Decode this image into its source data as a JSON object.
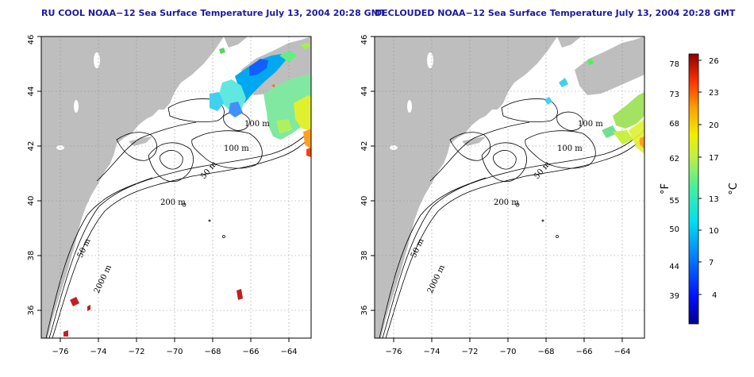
{
  "titles": {
    "left": "RU COOL NOAA−12 Sea Surface Temperature July 13, 2004 20:28 GMT",
    "right": "DECLOUDED NOAA−12 Sea Surface Temperature July 13, 2004 20:28 GMT"
  },
  "axes": {
    "lon_ticks": [
      "−76",
      "−74",
      "−72",
      "−70",
      "−68",
      "−66",
      "−64"
    ],
    "lon_values": [
      -76,
      -74,
      -72,
      -70,
      -68,
      -66,
      -64
    ],
    "lat_ticks": [
      "36",
      "38",
      "40",
      "42",
      "44",
      "46"
    ],
    "lat_values": [
      36,
      38,
      40,
      42,
      44,
      46
    ],
    "lon_range": [
      -77.2,
      -63.0
    ],
    "lat_range": [
      35.0,
      46.0
    ],
    "grid": "dotted"
  },
  "contour_labels": [
    "100 m",
    "100 m",
    "50 m",
    "200 m",
    "50 m",
    "2000 m"
  ],
  "colorbar": {
    "fahrenheit_ticks": [
      "78",
      "73",
      "68",
      "62",
      "55",
      "50",
      "44",
      "39"
    ],
    "celsius_ticks": [
      "26",
      "23",
      "20",
      "17",
      "13",
      "10",
      "7",
      "4"
    ],
    "fahrenheit_label": "°F",
    "celsius_label": "°C",
    "colors": [
      "#000090",
      "#0010ff",
      "#0080ff",
      "#00e0f0",
      "#40f0a0",
      "#c0f040",
      "#f0f000",
      "#ffa000",
      "#ff3000",
      "#900000"
    ]
  },
  "colors": {
    "land": "#bebebe",
    "ocean": "#ffffff",
    "contour": "#000000",
    "title": "#1a1aa0"
  }
}
